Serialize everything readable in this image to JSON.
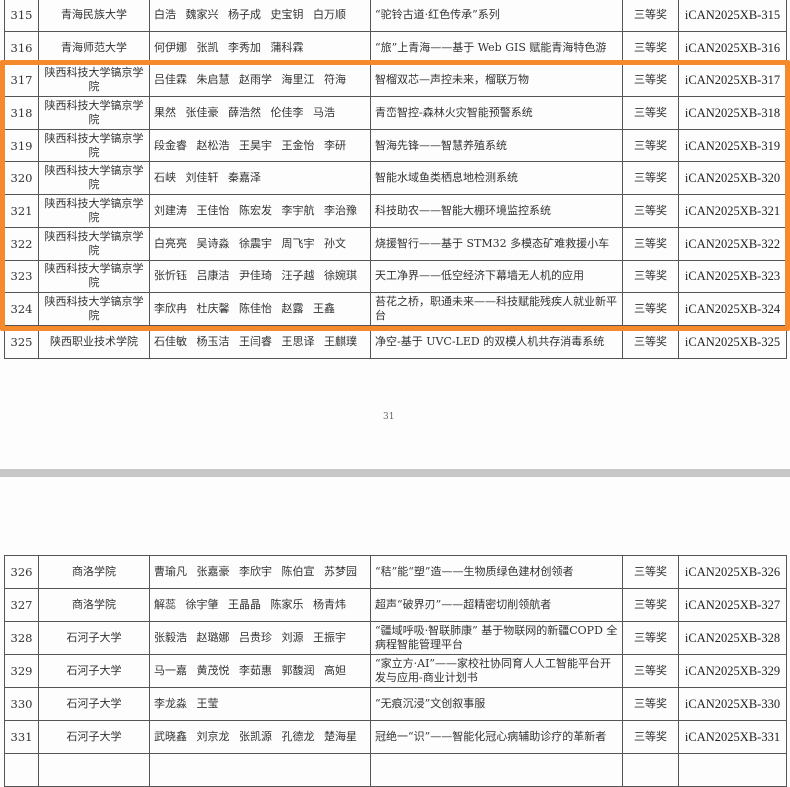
{
  "page1": {
    "rows": [
      {
        "no": "315",
        "school": "青海民族大学",
        "members": "白浩 魏家兴 杨子成 史宝钥 白万顺",
        "project": "“驼铃古道·红色传承”系列",
        "award": "三等奖",
        "code": "iCAN2025XB-315"
      },
      {
        "no": "316",
        "school": "青海师范大学",
        "members": "何伊娜 张凯 李秀加 蒲科霖",
        "project": "“旅”上青海——基于 Web GIS 赋能青海特色游",
        "award": "三等奖",
        "code": "iCAN2025XB-316"
      },
      {
        "no": "317",
        "school": "陕西科技大学镐京学院",
        "members": "吕佳霖 朱启慧 赵雨学 海里江 符海",
        "project": "智榴双芯—声控未来，榴联万物",
        "award": "三等奖",
        "code": "iCAN2025XB-317"
      },
      {
        "no": "318",
        "school": "陕西科技大学镐京学院",
        "members": "果然 张佳豪 薛浩然 伦佳李 马浩",
        "project": "青峦智控-森林火灾智能预警系统",
        "award": "三等奖",
        "code": "iCAN2025XB-318"
      },
      {
        "no": "319",
        "school": "陕西科技大学镐京学院",
        "members": "段金睿 赵松浩 王昊宇 王金怡 李研",
        "project": "智海先锋——智慧养殖系统",
        "award": "三等奖",
        "code": "iCAN2025XB-319"
      },
      {
        "no": "320",
        "school": "陕西科技大学镐京学院",
        "members": "石峡 刘佳轩 秦嘉泽",
        "project": "智能水域鱼类栖息地检测系统",
        "award": "三等奖",
        "code": "iCAN2025XB-320"
      },
      {
        "no": "321",
        "school": "陕西科技大学镐京学院",
        "members": "刘建涛 王佳怡 陈宏发 李宇航 李治豫",
        "project": "科技助农——智能大棚环境监控系统",
        "award": "三等奖",
        "code": "iCAN2025XB-321"
      },
      {
        "no": "322",
        "school": "陕西科技大学镐京学院",
        "members": "白亮亮 吴诗淼 徐震宇 周飞宇 孙文",
        "project": "烧援智行——基于 STM32 多模态矿难救援小车",
        "award": "三等奖",
        "code": "iCAN2025XB-322"
      },
      {
        "no": "323",
        "school": "陕西科技大学镐京学院",
        "members": "张忻钰 吕康洁 尹佳琦 汪子越 徐婉琪",
        "project": "天工净界——低空经济下幕墙无人机的应用",
        "award": "三等奖",
        "code": "iCAN2025XB-323"
      },
      {
        "no": "324",
        "school": "陕西科技大学镐京学院",
        "members": "李欣冉 杜庆馨 陈佳怡 赵露 王鑫",
        "project": "苔花之桥，职通未来——科技赋能残疾人就业新平台",
        "award": "三等奖",
        "code": "iCAN2025XB-324"
      },
      {
        "no": "325",
        "school": "陕西职业技术学院",
        "members": "石佳敏 杨玉洁 王闫睿 王思译 王麒璞",
        "project": "净空-基于 UVC-LED 的双模人机共存消毒系统",
        "award": "三等奖",
        "code": "iCAN2025XB-325"
      }
    ],
    "page_number": "31"
  },
  "page2": {
    "rows": [
      {
        "no": "326",
        "school": "商洛学院",
        "members": "曹瑜凡 张嘉豪 李欣宇 陈伯宣 苏梦园",
        "project": "“秸”能“塑”造——生物质绿色建材创领者",
        "award": "三等奖",
        "code": "iCAN2025XB-326"
      },
      {
        "no": "327",
        "school": "商洛学院",
        "members": "解蕊 徐宇肇 王晶晶 陈家乐 杨青炜",
        "project": "超声“破界刃”——超精密切削领航者",
        "award": "三等奖",
        "code": "iCAN2025XB-327"
      },
      {
        "no": "328",
        "school": "石河子大学",
        "members": "张毅浩 赵璐娜 吕贵珍 刘源 王振宇",
        "project": "“疆域呼吸·智联肺康” 基于物联网的新疆COPD 全病程智能管理平台",
        "award": "三等奖",
        "code": "iCAN2025XB-328"
      },
      {
        "no": "329",
        "school": "石河子大学",
        "members": "马一嘉 黄茂悦 李茹惠 郭馥润 高妲",
        "project": "“家立方·AI”——家校社协同育人人工智能平台开发与应用-商业计划书",
        "award": "三等奖",
        "code": "iCAN2025XB-329"
      },
      {
        "no": "330",
        "school": "石河子大学",
        "members": "李龙淼 王莹",
        "project": "“无痕沉浸”文创叙事服",
        "award": "三等奖",
        "code": "iCAN2025XB-330"
      },
      {
        "no": "331",
        "school": "石河子大学",
        "members": "武晓鑫 刘京龙 张凯源 孔德龙 楚海星",
        "project": "冠绝一“识”——智能化冠心病辅助诊疗的革新者",
        "award": "三等奖",
        "code": "iCAN2025XB-331"
      }
    ]
  },
  "highlight_color": "#f58a2c"
}
